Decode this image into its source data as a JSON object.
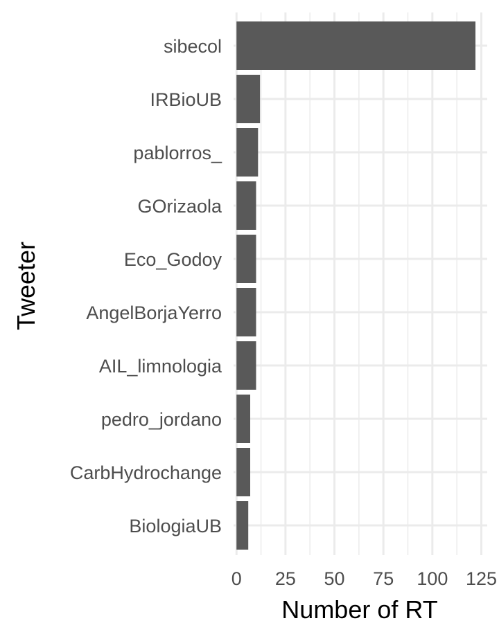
{
  "chart_data": {
    "type": "bar",
    "orientation": "horizontal",
    "title": "",
    "xlabel": "Number of RT",
    "ylabel": "Tweeter",
    "categories": [
      "sibecol",
      "IRBioUB",
      "pablorros_",
      "GOrizaola",
      "Eco_Godoy",
      "AngelBorjaYerro",
      "AIL_limnologia",
      "pedro_jordano",
      "CarbHydrochange",
      "BiologiaUB"
    ],
    "values": [
      122,
      12,
      11,
      10,
      10,
      10,
      10,
      7,
      7,
      6
    ],
    "xlim": [
      -1.5,
      128
    ],
    "xticks": [
      0,
      25,
      50,
      75,
      100,
      125
    ],
    "xtick_labels": [
      "0",
      "25",
      "50",
      "75",
      "100",
      "125"
    ],
    "grid": true,
    "legend": "none",
    "bar_color": "#595959",
    "grid_color": "#ebebeb",
    "text_color": "#4d4d4d",
    "axis_title_color": "#000000"
  }
}
